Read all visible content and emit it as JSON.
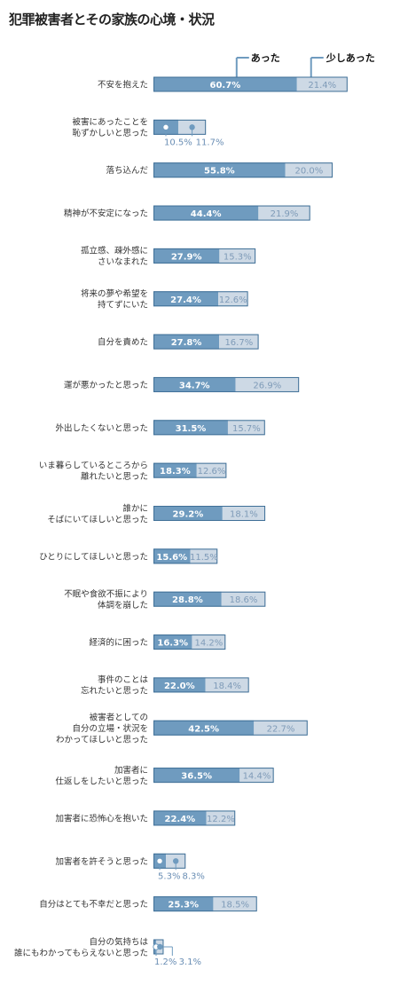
{
  "title": "犯罪被害者とその家族の心境・状況",
  "chart_data": {
    "type": "bar",
    "stacked": true,
    "orientation": "horizontal",
    "unit": "%",
    "xlim": [
      0,
      100
    ],
    "grid": false,
    "legend_position": "top-right",
    "colors": {
      "あった": "#6f9bbf",
      "少しあった": "#cdd9e5",
      "border": "#3f6f97"
    },
    "categories": [
      "不安を抱えた",
      "被害にあったことを\n恥ずかしいと思った",
      "落ち込んだ",
      "精神が不安定になった",
      "孤立感、疎外感に\nさいなまれた",
      "将来の夢や希望を\n持てずにいた",
      "自分を責めた",
      "運が悪かったと思った",
      "外出したくないと思った",
      "いま暮らしているところから\n離れたいと思った",
      "誰かに\nそばにいてほしいと思った",
      "ひとりにしてほしいと思った",
      "不眠や食欲不振により\n体調を崩した",
      "経済的に困った",
      "事件のことは\n忘れたいと思った",
      "被害者としての\n自分の立場・状況を\nわかってほしいと思った",
      "加害者に\n仕返しをしたいと思った",
      "加害者に恐怖心を抱いた",
      "加害者を許そうと思った",
      "自分はとても不幸だと思った",
      "自分の気持ちは\n誰にもわかってもらえないと思った"
    ],
    "series": [
      {
        "name": "あった",
        "values": [
          60.7,
          10.5,
          55.8,
          44.4,
          27.9,
          27.4,
          27.8,
          34.7,
          31.5,
          18.3,
          29.2,
          15.6,
          28.8,
          16.3,
          22.0,
          42.5,
          36.5,
          22.4,
          5.3,
          25.3,
          1.2
        ]
      },
      {
        "name": "少しあった",
        "values": [
          21.4,
          11.7,
          20.0,
          21.9,
          15.3,
          12.6,
          16.7,
          26.9,
          15.7,
          12.6,
          18.1,
          11.5,
          18.6,
          14.2,
          18.4,
          22.7,
          14.4,
          12.2,
          8.3,
          18.5,
          3.1
        ]
      }
    ],
    "value_labels": {
      "あった": [
        "60.7%",
        "10.5%",
        "55.8%",
        "44.4%",
        "27.9%",
        "27.4%",
        "27.8%",
        "34.7%",
        "31.5%",
        "18.3%",
        "29.2%",
        "15.6%",
        "28.8%",
        "16.3%",
        "22.0%",
        "42.5%",
        "36.5%",
        "22.4%",
        "5.3%",
        "25.3%",
        "1.2%"
      ],
      "少しあった": [
        "21.4%",
        "11.7%",
        "20.0%",
        "21.9%",
        "15.3%",
        "12.6%",
        "16.7%",
        "26.9%",
        "15.7%",
        "12.6%",
        "18.1%",
        "11.5%",
        "18.6%",
        "14.2%",
        "18.4%",
        "22.7%",
        "14.4%",
        "12.2%",
        "8.3%",
        "18.5%",
        "3.1%"
      ]
    }
  }
}
